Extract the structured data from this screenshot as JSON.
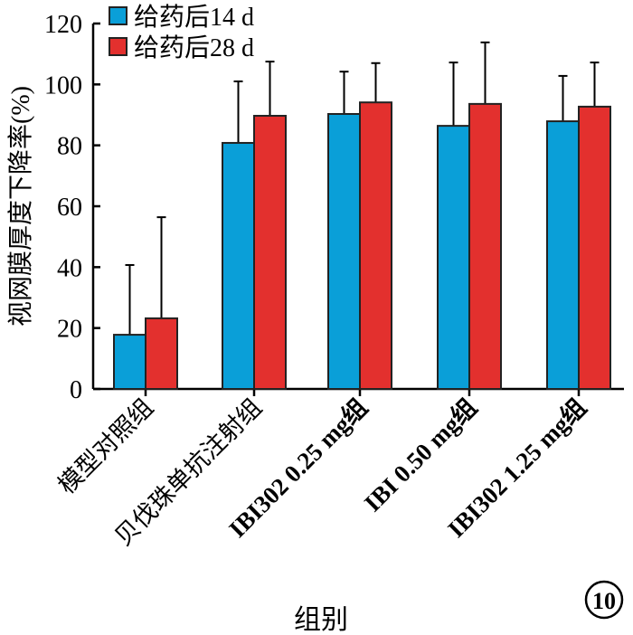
{
  "chart_data": {
    "type": "bar",
    "title": "",
    "xlabel": "组别",
    "ylabel": "视网膜厚度下降率(%)",
    "ylim": [
      0,
      120
    ],
    "yticks": [
      0,
      20,
      40,
      60,
      80,
      100,
      120
    ],
    "grid": false,
    "legend_position": "top-left",
    "categories": [
      "模型对照组",
      "贝伐珠单抗注射组",
      "IBI302 0.25 mg组",
      "IBI 0.50 mg组",
      "IBI302 1.25 mg组"
    ],
    "series": [
      {
        "name": "给药后14 d",
        "color": "#0a9fd8",
        "values": [
          17.8,
          80.8,
          90.3,
          86.4,
          87.9
        ],
        "errors": [
          22.9,
          20.2,
          13.9,
          20.8,
          14.9
        ]
      },
      {
        "name": "给药后28 d",
        "color": "#e3302e",
        "values": [
          23.2,
          89.7,
          94.1,
          93.6,
          92.7
        ],
        "errors": [
          33.2,
          17.8,
          12.9,
          20.2,
          14.5
        ]
      }
    ],
    "panel_label": "10"
  }
}
